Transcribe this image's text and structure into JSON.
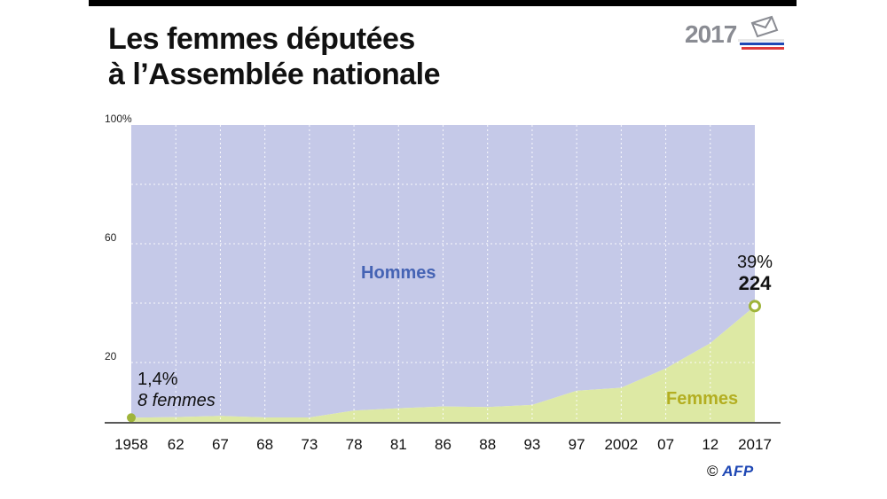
{
  "header": {
    "title_line1": "Les femmes députées",
    "title_line2": "à l’Assemblée nationale",
    "logo_year": "2017"
  },
  "credit": {
    "copyright": "©",
    "agency": "AFP"
  },
  "colors": {
    "hommes_fill": "#c5c9e8",
    "femmes_fill": "#dde9a4",
    "hommes_label": "#4563b4",
    "femmes_label": "#b3ae21",
    "marker": "#9fb43a"
  },
  "chart_data": {
    "type": "area",
    "x": [
      "1958",
      "62",
      "67",
      "68",
      "73",
      "78",
      "81",
      "86",
      "88",
      "93",
      "97",
      "2002",
      "07",
      "12",
      "2017"
    ],
    "y_ticks": [
      {
        "value": 100,
        "label": "100%"
      },
      {
        "value": 60,
        "label": "60"
      },
      {
        "value": 20,
        "label": "20"
      }
    ],
    "ylim": [
      0,
      100
    ],
    "series": [
      {
        "name": "Femmes",
        "values": [
          1.4,
          1.6,
          2.0,
          1.5,
          1.5,
          3.8,
          4.6,
          5.2,
          5.0,
          5.7,
          10.5,
          11.5,
          18.0,
          26.5,
          39.0
        ]
      },
      {
        "name": "Hommes",
        "values": [
          98.6,
          98.4,
          98.0,
          98.5,
          98.5,
          96.2,
          95.4,
          94.8,
          95.0,
          94.3,
          89.5,
          88.5,
          82.0,
          73.5,
          61.0
        ]
      }
    ],
    "annotations": [
      {
        "id": "start",
        "x": "1958",
        "y": 1.4,
        "pct": "1,4%",
        "count": "8 femmes"
      },
      {
        "id": "end",
        "x": "2017",
        "y": 39.0,
        "pct": "39%",
        "count": "224"
      }
    ]
  }
}
